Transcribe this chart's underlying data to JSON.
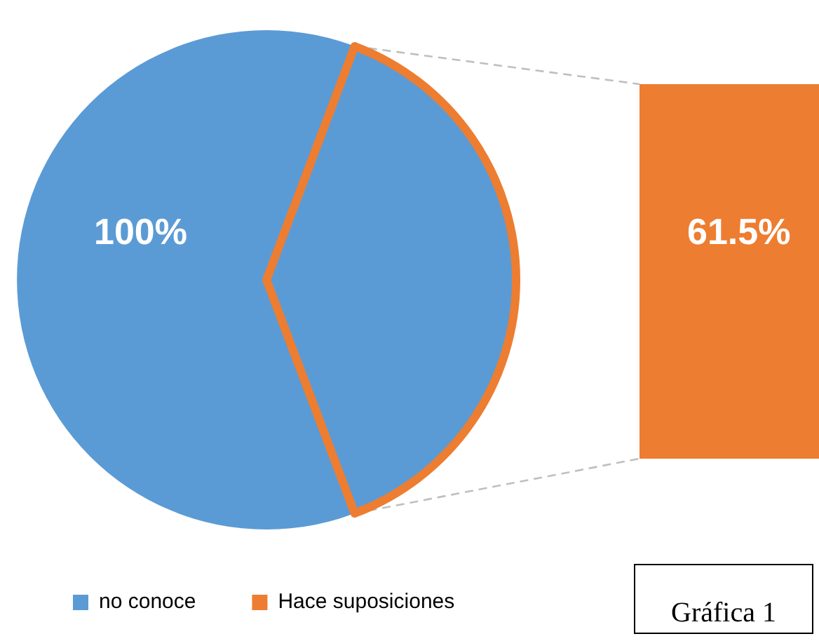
{
  "chart_data": {
    "type": "other",
    "annotations": [
      "Gráfica 1"
    ],
    "categories": [
      "no conoce",
      "Hace suposiciones"
    ],
    "values": [
      100,
      61.5
    ],
    "colors": [
      "#5b9bd5",
      "#ed7d31"
    ],
    "value_labels": [
      "100%",
      "61.5%"
    ]
  }
}
